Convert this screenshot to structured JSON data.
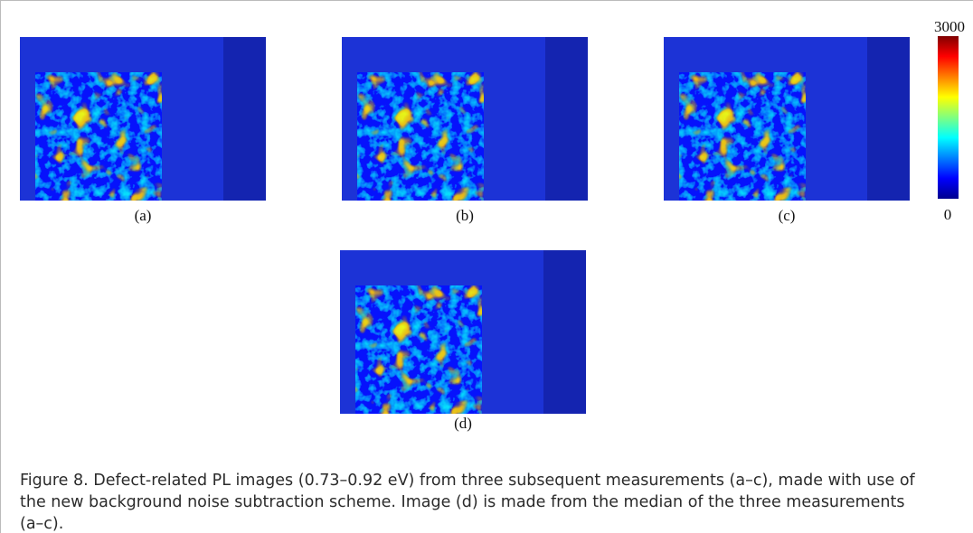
{
  "panels": [
    {
      "label": "(a)"
    },
    {
      "label": "(b)"
    },
    {
      "label": "(c)"
    },
    {
      "label": "(d)"
    }
  ],
  "colorbar": {
    "max": 3000,
    "min": 0
  },
  "caption": "Figure 8. Defect-related PL images (0.73–0.92 eV) from three subsequent measurements (a–c), made with use of the new background noise subtraction scheme. Image (d) is made from the median of the three measurements (a–c)."
}
